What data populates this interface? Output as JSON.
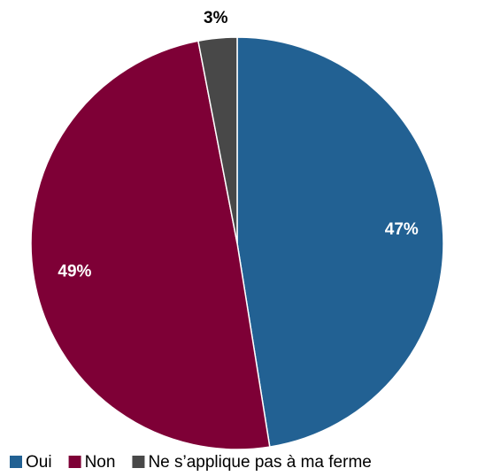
{
  "chart_data": {
    "type": "pie",
    "categories": [
      "Oui",
      "Non",
      "Ne s’applique pas à ma ferme"
    ],
    "values": [
      47,
      49,
      3
    ],
    "value_labels": [
      "47%",
      "49%",
      "3%"
    ],
    "colors": [
      "#226193",
      "#7e0036",
      "#484848"
    ],
    "legend": "bottom"
  }
}
